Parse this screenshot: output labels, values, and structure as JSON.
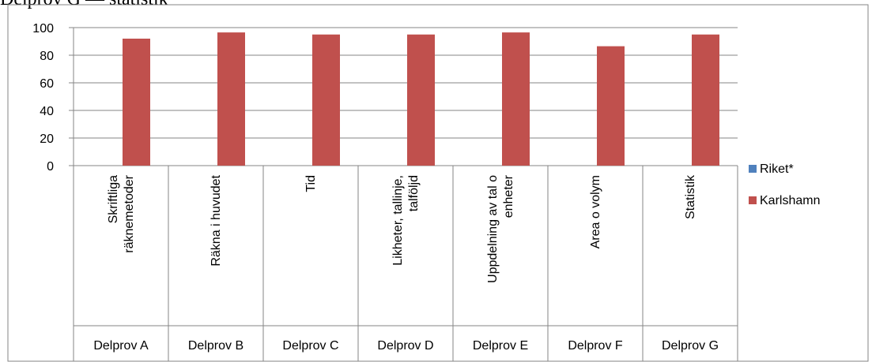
{
  "page": {
    "heading": "Delprov G — statistik"
  },
  "chart_data": {
    "type": "bar",
    "series": [
      {
        "name": "Riket*",
        "color": "#4F81BD",
        "values": [
          null,
          null,
          null,
          null,
          null,
          null,
          null
        ]
      },
      {
        "name": "Karlshamn",
        "color": "#C0504D",
        "values": [
          92,
          96.5,
          95,
          95,
          96.5,
          86.5,
          95
        ]
      }
    ],
    "categories": [
      {
        "label": [
          "Skriftliga",
          "räknemetoder"
        ],
        "group": "Delprov A"
      },
      {
        "label": [
          "Räkna i huvudet"
        ],
        "group": "Delprov B"
      },
      {
        "label": [
          "Tid"
        ],
        "group": "Delprov C"
      },
      {
        "label": [
          "Likheter, tallinje,",
          "talföljd"
        ],
        "group": "Delprov D"
      },
      {
        "label": [
          "Uppdelning av tal o",
          "enheter"
        ],
        "group": "Delprov E"
      },
      {
        "label": [
          "Area o volym"
        ],
        "group": "Delprov F"
      },
      {
        "label": [
          "Statistik"
        ],
        "group": "Delprov G"
      }
    ],
    "yticks": [
      0,
      20,
      40,
      60,
      80,
      100
    ],
    "ylim": [
      0,
      100
    ],
    "grid": true,
    "legend": "right"
  }
}
